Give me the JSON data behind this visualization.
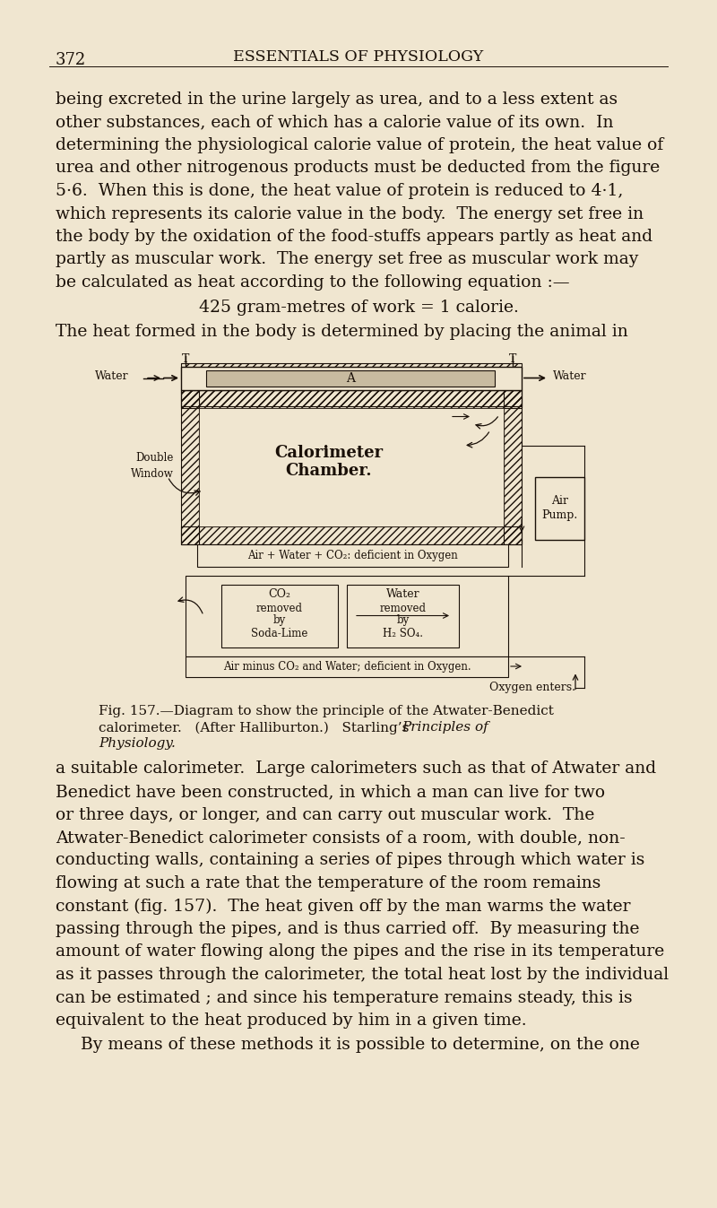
{
  "bg_color": "#f0e6d0",
  "page_number": "372",
  "header_title": "ESSENTIALS OF PHYSIOLOGY",
  "text_color": "#1a1008",
  "p1_lines": [
    "being excreted in the urine largely as urea, and to a less extent as",
    "other substances, each of which has a calorie value of its own.  In",
    "determining the physiological calorie value of protein, the heat value of",
    "urea and other nitrogenous products must be deducted from the figure",
    "5·6.  When this is done, the heat value of protein is reduced to 4·1,",
    "which represents its calorie value in the body.  The energy set free in",
    "the body by the oxidation of the food-stuffs appears partly as heat and",
    "partly as muscular work.  The energy set free as muscular work may",
    "be calculated as heat according to the following equation :—"
  ],
  "equation": "425 gram-metres of work = 1 calorie.",
  "p2": "The heat formed in the body is determined by placing the animal in",
  "fig_cap1": "Fig. 157.—Diagram to show the principle of the Atwater-Benedict",
  "fig_cap2a": "calorimeter.   (After Halliburton.)   Starling’s ",
  "fig_cap2b": "Principles of",
  "fig_cap3": "Physiology.",
  "p3_lines": [
    "a suitable calorimeter.  Large calorimeters such as that of Atwater and",
    "Benedict have been constructed, in which a man can live for two",
    "or three days, or longer, and can carry out muscular work.  The",
    "Atwater-Benedict calorimeter consists of a room, with double, non-",
    "conducting walls, containing a series of pipes through which water is",
    "flowing at such a rate that the temperature of the room remains",
    "constant (fig. 157).  The heat given off by the man warms the water",
    "passing through the pipes, and is thus carried off.  By measuring the",
    "amount of water flowing along the pipes and the rise in its temperature",
    "as it passes through the calorimeter, the total heat lost by the individual",
    "can be estimated ; and since his temperature remains steady, this is",
    "equivalent to the heat produced by him in a given time."
  ],
  "p4": "    By means of these methods it is possible to determine, on the one"
}
